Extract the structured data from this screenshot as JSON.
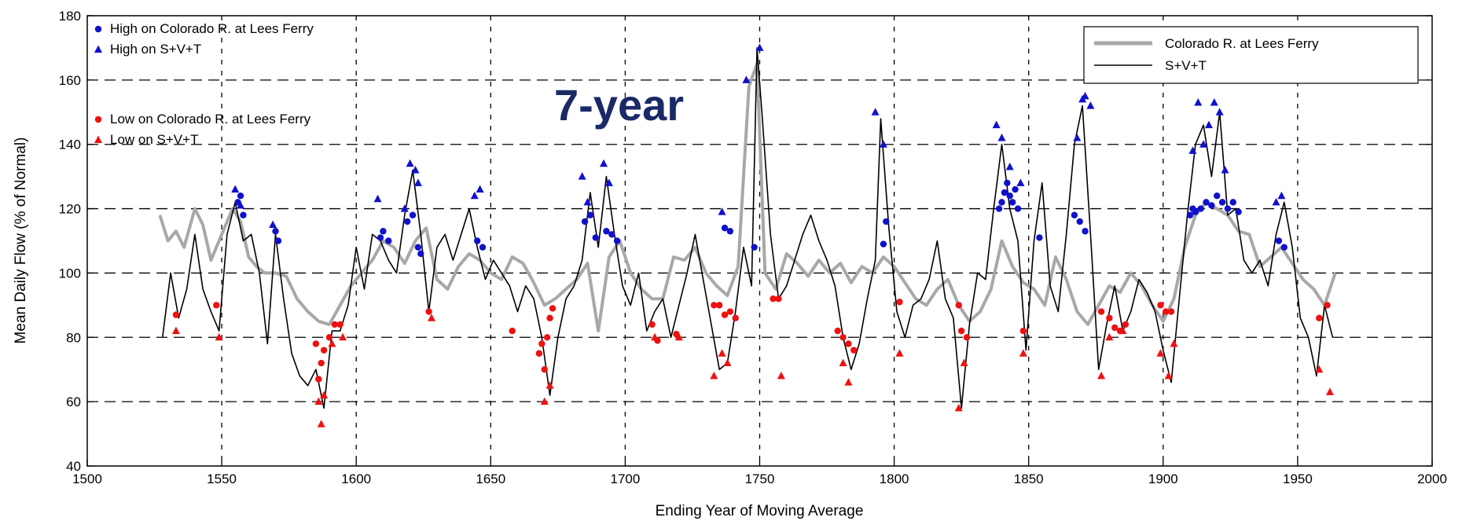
{
  "chart_data": {
    "type": "line",
    "title": "",
    "overlay_label": "7-year",
    "xlabel": "Ending  Year of Moving Average",
    "ylabel": "Mean Daily Flow (% of Normal)",
    "xlim": [
      1500,
      2000
    ],
    "ylim": [
      40,
      180
    ],
    "x_ticks": [
      1500,
      1550,
      1600,
      1650,
      1700,
      1750,
      1800,
      1850,
      1900,
      1950,
      2000
    ],
    "y_ticks": [
      40,
      60,
      80,
      100,
      120,
      140,
      160,
      180
    ],
    "grid": true,
    "series": [
      {
        "name": "Colorado R. at Lees Ferry",
        "color": "#a8a8a8",
        "x": [
          1527,
          1530,
          1533,
          1536,
          1540,
          1543,
          1546,
          1550,
          1554,
          1557,
          1560,
          1563,
          1566,
          1570,
          1574,
          1578,
          1582,
          1586,
          1590,
          1594,
          1598,
          1602,
          1606,
          1610,
          1614,
          1618,
          1622,
          1626,
          1630,
          1634,
          1638,
          1642,
          1646,
          1650,
          1654,
          1658,
          1662,
          1666,
          1670,
          1674,
          1678,
          1682,
          1686,
          1690,
          1694,
          1698,
          1702,
          1706,
          1710,
          1714,
          1718,
          1722,
          1726,
          1730,
          1734,
          1738,
          1742,
          1746,
          1749,
          1752,
          1756,
          1760,
          1764,
          1768,
          1772,
          1776,
          1780,
          1784,
          1788,
          1792,
          1796,
          1800,
          1804,
          1808,
          1812,
          1816,
          1820,
          1824,
          1828,
          1832,
          1836,
          1840,
          1844,
          1848,
          1852,
          1856,
          1860,
          1864,
          1868,
          1872,
          1876,
          1880,
          1884,
          1888,
          1892,
          1896,
          1900,
          1904,
          1908,
          1912,
          1916,
          1920,
          1924,
          1928,
          1932,
          1936,
          1940,
          1944,
          1948,
          1952,
          1956,
          1960,
          1964
        ],
        "values": [
          118,
          110,
          113,
          108,
          120,
          115,
          104,
          112,
          120,
          116,
          105,
          102,
          100,
          100,
          99,
          92,
          88,
          85,
          84,
          90,
          96,
          100,
          104,
          110,
          108,
          103,
          110,
          114,
          98,
          95,
          102,
          106,
          104,
          100,
          98,
          105,
          103,
          97,
          90,
          92,
          95,
          98,
          103,
          82,
          105,
          110,
          100,
          95,
          92,
          92,
          105,
          104,
          108,
          100,
          96,
          93,
          102,
          158,
          165,
          100,
          95,
          106,
          103,
          99,
          104,
          100,
          103,
          97,
          102,
          100,
          105,
          102,
          97,
          92,
          90,
          95,
          98,
          90,
          85,
          88,
          95,
          110,
          102,
          97,
          95,
          90,
          105,
          98,
          88,
          84,
          90,
          96,
          94,
          100,
          96,
          90,
          85,
          92,
          108,
          118,
          122,
          120,
          118,
          113,
          112,
          102,
          105,
          108,
          103,
          98,
          95,
          90,
          100
        ]
      },
      {
        "name": "S+V+T",
        "color": "#000000",
        "x": [
          1528,
          1531,
          1534,
          1537,
          1540,
          1543,
          1546,
          1549,
          1552,
          1555,
          1558,
          1561,
          1564,
          1567,
          1570,
          1573,
          1576,
          1579,
          1582,
          1585,
          1588,
          1591,
          1594,
          1597,
          1600,
          1603,
          1606,
          1609,
          1612,
          1615,
          1618,
          1621,
          1624,
          1627,
          1630,
          1633,
          1636,
          1639,
          1642,
          1645,
          1648,
          1651,
          1654,
          1657,
          1660,
          1663,
          1666,
          1669,
          1672,
          1675,
          1678,
          1681,
          1684,
          1687,
          1690,
          1693,
          1696,
          1699,
          1702,
          1705,
          1708,
          1711,
          1714,
          1717,
          1720,
          1723,
          1726,
          1729,
          1732,
          1735,
          1738,
          1741,
          1744,
          1747,
          1749,
          1751,
          1754,
          1757,
          1760,
          1763,
          1766,
          1769,
          1772,
          1775,
          1778,
          1781,
          1784,
          1787,
          1790,
          1793,
          1795,
          1798,
          1801,
          1804,
          1807,
          1810,
          1813,
          1816,
          1819,
          1822,
          1825,
          1828,
          1831,
          1834,
          1837,
          1840,
          1843,
          1846,
          1849,
          1852,
          1855,
          1858,
          1861,
          1864,
          1867,
          1870,
          1873,
          1876,
          1879,
          1882,
          1885,
          1888,
          1891,
          1894,
          1897,
          1900,
          1903,
          1906,
          1909,
          1912,
          1915,
          1918,
          1921,
          1924,
          1927,
          1930,
          1933,
          1936,
          1939,
          1942,
          1945,
          1948,
          1951,
          1954,
          1957,
          1960,
          1963
        ],
        "values": [
          80,
          100,
          86,
          95,
          112,
          95,
          88,
          82,
          112,
          122,
          110,
          112,
          100,
          78,
          112,
          92,
          75,
          68,
          65,
          70,
          58,
          82,
          82,
          90,
          108,
          95,
          112,
          110,
          104,
          100,
          118,
          132,
          112,
          88,
          108,
          112,
          104,
          112,
          120,
          108,
          98,
          104,
          100,
          96,
          88,
          96,
          92,
          80,
          62,
          80,
          92,
          96,
          104,
          125,
          108,
          130,
          112,
          96,
          90,
          100,
          82,
          88,
          92,
          80,
          90,
          100,
          112,
          98,
          84,
          70,
          72,
          88,
          108,
          96,
          170,
          148,
          112,
          92,
          96,
          104,
          112,
          118,
          110,
          104,
          96,
          80,
          70,
          78,
          92,
          104,
          148,
          114,
          88,
          80,
          90,
          92,
          98,
          110,
          92,
          86,
          58,
          84,
          100,
          98,
          120,
          140,
          120,
          110,
          76,
          110,
          128,
          96,
          88,
          112,
          140,
          152,
          112,
          70,
          84,
          96,
          82,
          88,
          98,
          94,
          88,
          76,
          66,
          92,
          118,
          140,
          146,
          130,
          150,
          118,
          120,
          104,
          100,
          104,
          96,
          112,
          122,
          108,
          86,
          80,
          68,
          90,
          80
        ]
      }
    ],
    "markers": {
      "high_colorado": {
        "label": "High on Colorado R. at Lees Ferry",
        "color": "#1010cc",
        "points": [
          [
            1556,
            122
          ],
          [
            1557,
            124
          ],
          [
            1558,
            118
          ],
          [
            1570,
            113
          ],
          [
            1571,
            110
          ],
          [
            1609,
            111
          ],
          [
            1610,
            113
          ],
          [
            1612,
            110
          ],
          [
            1619,
            116
          ],
          [
            1621,
            118
          ],
          [
            1623,
            108
          ],
          [
            1624,
            106
          ],
          [
            1645,
            110
          ],
          [
            1647,
            108
          ],
          [
            1685,
            116
          ],
          [
            1687,
            118
          ],
          [
            1689,
            111
          ],
          [
            1693,
            113
          ],
          [
            1695,
            112
          ],
          [
            1697,
            110
          ],
          [
            1737,
            114
          ],
          [
            1739,
            113
          ],
          [
            1748,
            108
          ],
          [
            1796,
            109
          ],
          [
            1797,
            116
          ],
          [
            1839,
            120
          ],
          [
            1840,
            122
          ],
          [
            1841,
            125
          ],
          [
            1842,
            128
          ],
          [
            1843,
            124
          ],
          [
            1844,
            122
          ],
          [
            1845,
            126
          ],
          [
            1846,
            120
          ],
          [
            1854,
            111
          ],
          [
            1867,
            118
          ],
          [
            1869,
            116
          ],
          [
            1871,
            113
          ],
          [
            1910,
            118
          ],
          [
            1911,
            120
          ],
          [
            1912,
            119
          ],
          [
            1914,
            120
          ],
          [
            1916,
            122
          ],
          [
            1918,
            121
          ],
          [
            1920,
            124
          ],
          [
            1922,
            122
          ],
          [
            1924,
            120
          ],
          [
            1926,
            122
          ],
          [
            1928,
            119
          ],
          [
            1943,
            110
          ],
          [
            1945,
            108
          ]
        ]
      },
      "high_svt": {
        "label": "High on S+V+T",
        "color": "#1010cc",
        "points": [
          [
            1555,
            126
          ],
          [
            1557,
            121
          ],
          [
            1569,
            115
          ],
          [
            1608,
            123
          ],
          [
            1618,
            120
          ],
          [
            1620,
            134
          ],
          [
            1622,
            132
          ],
          [
            1623,
            128
          ],
          [
            1644,
            124
          ],
          [
            1646,
            126
          ],
          [
            1684,
            130
          ],
          [
            1686,
            122
          ],
          [
            1692,
            134
          ],
          [
            1694,
            128
          ],
          [
            1736,
            119
          ],
          [
            1745,
            160
          ],
          [
            1750,
            170
          ],
          [
            1793,
            150
          ],
          [
            1796,
            140
          ],
          [
            1838,
            146
          ],
          [
            1840,
            142
          ],
          [
            1843,
            133
          ],
          [
            1847,
            128
          ],
          [
            1868,
            142
          ],
          [
            1870,
            154
          ],
          [
            1871,
            155
          ],
          [
            1873,
            152
          ],
          [
            1911,
            138
          ],
          [
            1913,
            153
          ],
          [
            1915,
            140
          ],
          [
            1917,
            146
          ],
          [
            1919,
            153
          ],
          [
            1921,
            150
          ],
          [
            1923,
            132
          ],
          [
            1942,
            122
          ],
          [
            1944,
            124
          ]
        ]
      },
      "low_colorado": {
        "label": "Low on Colorado R. at Lees Ferry",
        "color": "#ee1111",
        "points": [
          [
            1533,
            87
          ],
          [
            1548,
            90
          ],
          [
            1585,
            78
          ],
          [
            1586,
            67
          ],
          [
            1587,
            72
          ],
          [
            1588,
            76
          ],
          [
            1590,
            80
          ],
          [
            1592,
            84
          ],
          [
            1594,
            84
          ],
          [
            1627,
            88
          ],
          [
            1658,
            82
          ],
          [
            1668,
            75
          ],
          [
            1669,
            78
          ],
          [
            1670,
            70
          ],
          [
            1671,
            80
          ],
          [
            1672,
            86
          ],
          [
            1673,
            89
          ],
          [
            1710,
            84
          ],
          [
            1712,
            79
          ],
          [
            1719,
            81
          ],
          [
            1733,
            90
          ],
          [
            1735,
            90
          ],
          [
            1737,
            87
          ],
          [
            1739,
            88
          ],
          [
            1741,
            86
          ],
          [
            1755,
            92
          ],
          [
            1757,
            92
          ],
          [
            1779,
            82
          ],
          [
            1781,
            80
          ],
          [
            1783,
            78
          ],
          [
            1785,
            76
          ],
          [
            1802,
            91
          ],
          [
            1824,
            90
          ],
          [
            1825,
            82
          ],
          [
            1827,
            80
          ],
          [
            1848,
            82
          ],
          [
            1877,
            88
          ],
          [
            1880,
            86
          ],
          [
            1882,
            83
          ],
          [
            1884,
            82
          ],
          [
            1886,
            84
          ],
          [
            1899,
            90
          ],
          [
            1901,
            88
          ],
          [
            1903,
            88
          ],
          [
            1958,
            86
          ],
          [
            1961,
            90
          ]
        ]
      },
      "low_svt": {
        "label": "Low on S+V+T",
        "color": "#ee1111",
        "points": [
          [
            1533,
            82
          ],
          [
            1549,
            80
          ],
          [
            1586,
            60
          ],
          [
            1587,
            53
          ],
          [
            1588,
            62
          ],
          [
            1591,
            78
          ],
          [
            1595,
            80
          ],
          [
            1628,
            86
          ],
          [
            1670,
            60
          ],
          [
            1672,
            65
          ],
          [
            1711,
            80
          ],
          [
            1720,
            80
          ],
          [
            1733,
            68
          ],
          [
            1736,
            75
          ],
          [
            1738,
            72
          ],
          [
            1758,
            68
          ],
          [
            1781,
            72
          ],
          [
            1783,
            66
          ],
          [
            1802,
            75
          ],
          [
            1824,
            58
          ],
          [
            1826,
            72
          ],
          [
            1848,
            75
          ],
          [
            1877,
            68
          ],
          [
            1880,
            80
          ],
          [
            1885,
            82
          ],
          [
            1899,
            75
          ],
          [
            1902,
            68
          ],
          [
            1904,
            78
          ],
          [
            1958,
            70
          ],
          [
            1962,
            63
          ]
        ]
      }
    },
    "legend_markers": {
      "placement": "top-left",
      "entries": [
        {
          "text": "High on Colorado R. at Lees Ferry",
          "symbol": "circle",
          "color": "#1010cc"
        },
        {
          "text": "High on S+V+T",
          "symbol": "triangle",
          "color": "#1010cc"
        },
        {
          "text": "Low on Colorado R. at Lees Ferry",
          "symbol": "circle",
          "color": "#ee1111"
        },
        {
          "text": "Low on S+V+T",
          "symbol": "triangle",
          "color": "#ee1111"
        }
      ]
    },
    "legend_lines": {
      "placement": "top-right",
      "entries": [
        {
          "text": "Colorado  R. at Lees Ferry",
          "color": "#a8a8a8"
        },
        {
          "text": "S+V+T",
          "color": "#000000"
        }
      ]
    }
  }
}
